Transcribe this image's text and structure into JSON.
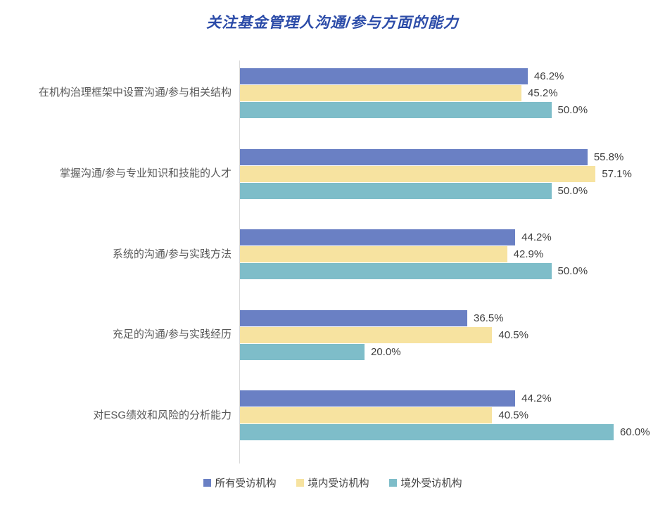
{
  "title": "关注基金管理人沟通/参与方面的能力",
  "title_color": "#2b4ba8",
  "axis_line_color": "#d9d9d9",
  "chart_data": {
    "type": "bar",
    "orientation": "horizontal",
    "title": "关注基金管理人沟通/参与方面的能力",
    "xlabel": "",
    "ylabel": "",
    "xlim": [
      0,
      68
    ],
    "grid": false,
    "legend_position": "bottom",
    "data_labels": true,
    "categories": [
      "在机构治理框架中设置沟通/参与相关结构",
      "掌握沟通/参与专业知识和技能的人才",
      "系统的沟通/参与实践方法",
      "充足的沟通/参与实践经历",
      "对ESG绩效和风险的分析能力"
    ],
    "series": [
      {
        "name": "所有受访机构",
        "color": "#6a80c4",
        "values": [
          46.2,
          55.8,
          44.2,
          36.5,
          44.2
        ],
        "labels": [
          "46.2%",
          "55.8%",
          "44.2%",
          "36.5%",
          "44.2%"
        ]
      },
      {
        "name": "境内受访机构",
        "color": "#f7e3a0",
        "values": [
          45.2,
          57.1,
          42.9,
          40.5,
          40.5
        ],
        "labels": [
          "45.2%",
          "57.1%",
          "42.9%",
          "40.5%",
          "40.5%"
        ]
      },
      {
        "name": "境外受访机构",
        "color": "#7ebdc9",
        "values": [
          50.0,
          50.0,
          50.0,
          20.0,
          60.0
        ],
        "labels": [
          "50.0%",
          "50.0%",
          "50.0%",
          "20.0%",
          "60.0%"
        ]
      }
    ]
  }
}
